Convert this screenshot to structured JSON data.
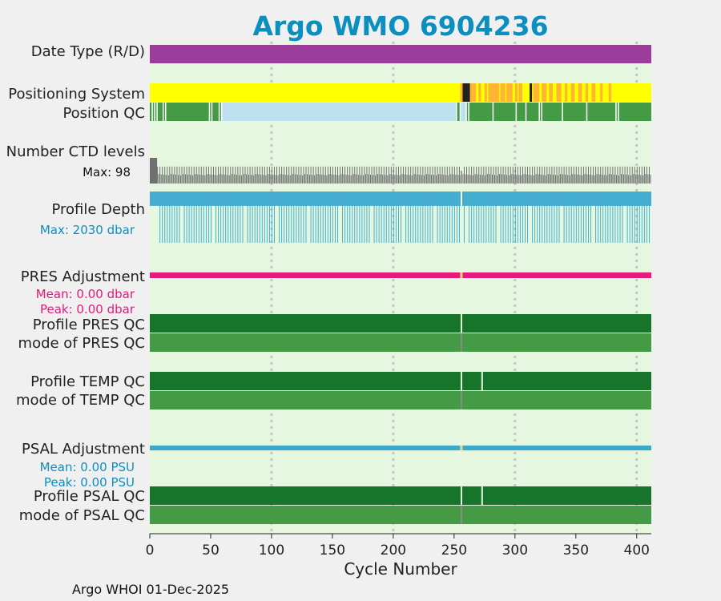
{
  "title": "Argo WMO 6904236",
  "footer": "Argo WHOI 01-Dec-2025",
  "colors": {
    "title": "#0a8fbf",
    "plot_bg": "#e5f8df",
    "date_type": "#9b3e9b",
    "pos_yellow": "#ffff00",
    "pos_orange": "#ffb533",
    "pos_black": "#222222",
    "qc_green_light": "#459a45",
    "qc_green_dark": "#16752a",
    "qc_blue_light": "#bde0ee",
    "gray": "#707070",
    "depth_blue": "#45aed0",
    "pres_pink": "#e6197d",
    "psal_blue": "#3ba9cc"
  },
  "chart_data": {
    "type": "heatmap",
    "xlabel": "Cycle Number",
    "xlim": [
      0,
      412
    ],
    "xticks": [
      0,
      50,
      100,
      150,
      200,
      250,
      300,
      350,
      400
    ],
    "vertical_grid": [
      100,
      200,
      300,
      400
    ],
    "rows": [
      {
        "id": "date-type",
        "label": "Date Type (R/D)"
      },
      {
        "id": "positioning-system",
        "label": "Positioning System"
      },
      {
        "id": "position-qc",
        "label": "Position QC"
      },
      {
        "id": "number-ctd-levels",
        "label": "Number CTD levels",
        "sublabel": "Max: 98"
      },
      {
        "id": "profile-depth",
        "label": "Profile Depth",
        "sublabel": "Max: 2030 dbar"
      },
      {
        "id": "pres-adjustment",
        "label": "PRES Adjustment",
        "sublabels": [
          "Mean: 0.00 dbar",
          "Peak: 0.00 dbar"
        ]
      },
      {
        "id": "profile-pres-qc",
        "label": "Profile PRES QC"
      },
      {
        "id": "mode-pres-qc",
        "label": "mode of PRES QC"
      },
      {
        "id": "profile-temp-qc",
        "label": "Profile TEMP QC"
      },
      {
        "id": "mode-temp-qc",
        "label": "mode of TEMP QC"
      },
      {
        "id": "psal-adjustment",
        "label": "PSAL Adjustment",
        "sublabels": [
          "Mean: 0.00 PSU",
          "Peak: 0.00 PSU"
        ]
      },
      {
        "id": "profile-psal-qc",
        "label": "Profile PSAL QC"
      },
      {
        "id": "mode-psal-qc",
        "label": "mode of PSAL QC"
      }
    ],
    "date_type": {
      "value": "D",
      "range": [
        0,
        412
      ]
    },
    "positioning_system": {
      "yellow": [
        [
          0,
          255
        ]
      ],
      "orange": [
        [
          255,
          257
        ],
        [
          262,
          268
        ],
        [
          270,
          272
        ],
        [
          275,
          277
        ],
        [
          278,
          287
        ],
        [
          288,
          292
        ],
        [
          293,
          298
        ],
        [
          300,
          302
        ],
        [
          303,
          306
        ],
        [
          315,
          320
        ],
        [
          322,
          326
        ],
        [
          328,
          331
        ],
        [
          334,
          338
        ],
        [
          341,
          343
        ],
        [
          346,
          349
        ],
        [
          352,
          355
        ],
        [
          358,
          360
        ],
        [
          363,
          366
        ],
        [
          370,
          372
        ],
        [
          377,
          379
        ]
      ],
      "black": [
        [
          257,
          263
        ],
        [
          312,
          314
        ]
      ]
    },
    "position_qc": {
      "light_blue_range": [
        59,
        252
      ],
      "light_blue_extra": [
        [
          255,
          260
        ]
      ],
      "white_gaps": [
        2,
        4,
        6,
        11,
        13,
        49,
        51,
        57,
        59,
        252,
        255,
        260,
        262,
        282,
        301,
        309,
        320,
        322,
        339,
        359,
        383,
        385
      ]
    },
    "number_ctd_levels": {
      "max": 98,
      "first_cycles_full": [
        0,
        6
      ],
      "typical_fill": 0.32,
      "spike_fill": 0.66
    },
    "profile_depth": {
      "max_dbar": 2030,
      "typical_fill": 1.0,
      "shallow_fill": 0.36,
      "gap_cycle": 256
    },
    "pres_adjustment": {
      "mean_dbar": 0.0,
      "peak_dbar": 0.0,
      "gap_cycle": 256
    },
    "profile_pres_qc": {
      "grade": "A",
      "gap_cycles": [
        256
      ]
    },
    "mode_pres_qc": {
      "qc": 1,
      "gap_cycles": [
        256
      ]
    },
    "profile_temp_qc": {
      "grade": "A",
      "gap_cycles": [
        256,
        273
      ]
    },
    "mode_temp_qc": {
      "qc": 1,
      "gap_cycles": [
        256
      ]
    },
    "psal_adjustment": {
      "mean_psu": 0.0,
      "peak_psu": 0.0,
      "gap_cycle": 256
    },
    "profile_psal_qc": {
      "grade": "A",
      "gap_cycles": [
        256,
        273
      ]
    },
    "mode_psal_qc": {
      "qc": 1,
      "gap_cycles": [
        256
      ]
    }
  }
}
